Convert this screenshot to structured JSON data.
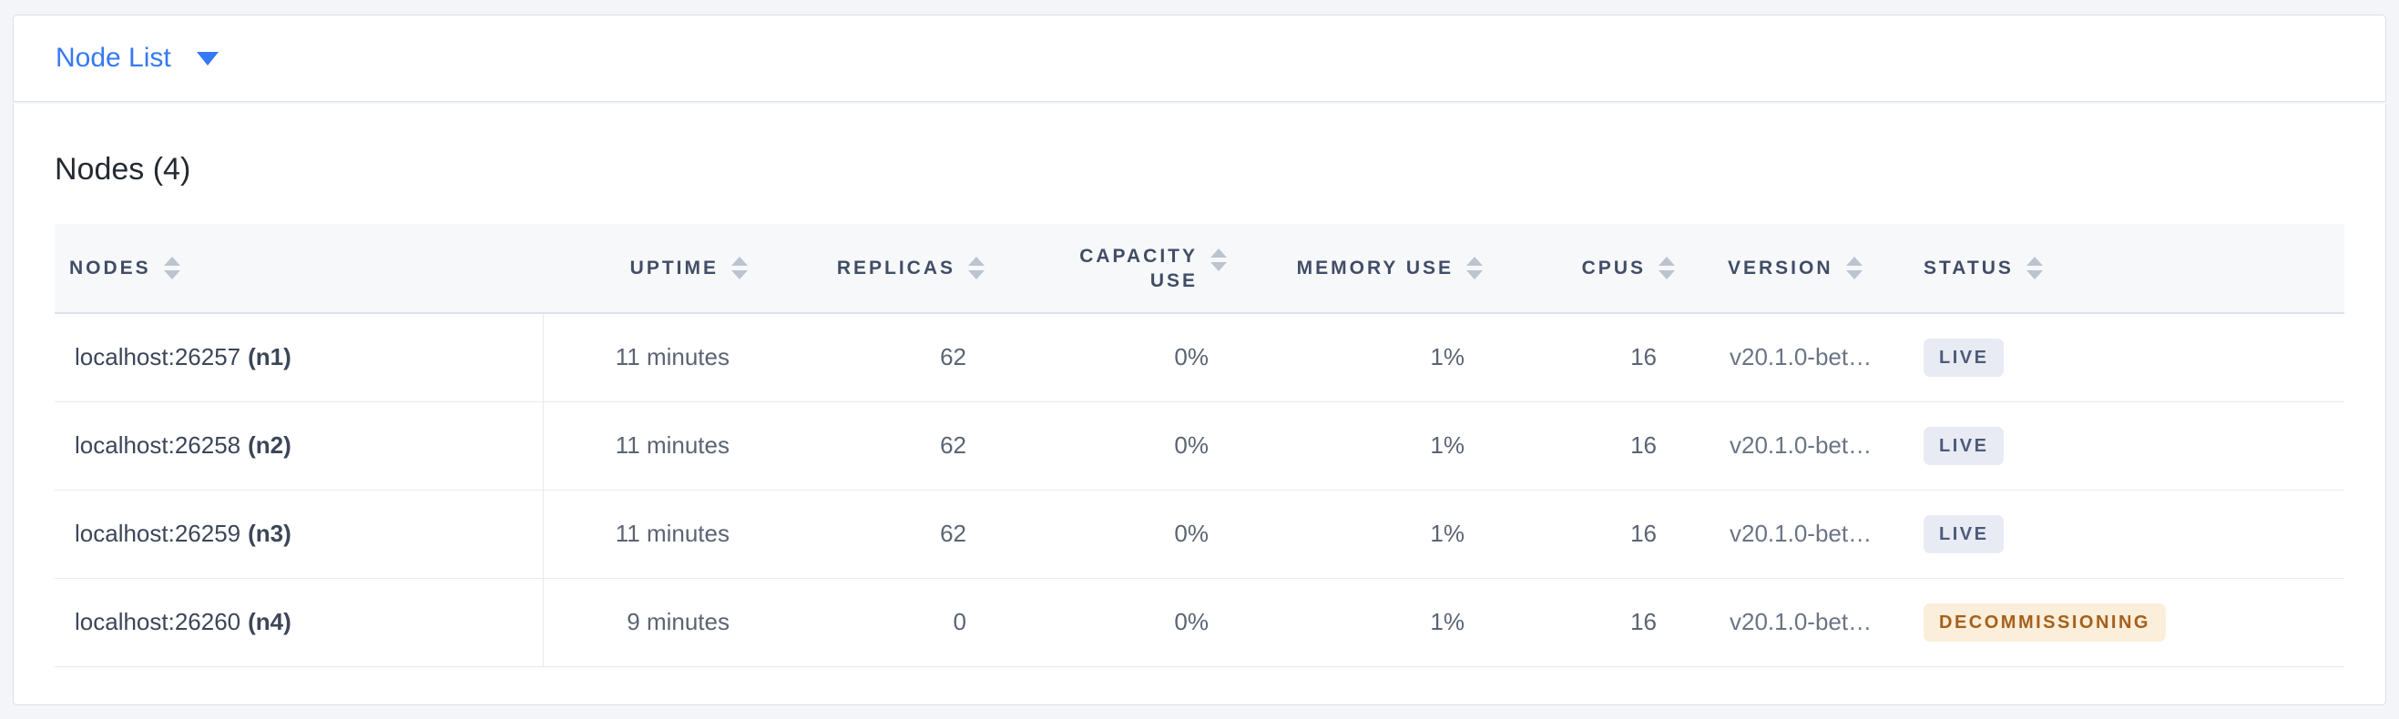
{
  "toolbar": {
    "selector_label": "Node List"
  },
  "main": {
    "title": "Nodes (4)",
    "table": {
      "columns": [
        {
          "key": "nodes",
          "label": "NODES",
          "align": "left",
          "sortable": true
        },
        {
          "key": "uptime",
          "label": "UPTIME",
          "align": "right",
          "sortable": true
        },
        {
          "key": "replicas",
          "label": "REPLICAS",
          "align": "right",
          "sortable": true
        },
        {
          "key": "capacity_use",
          "label": "CAPACITY USE",
          "align": "right",
          "sortable": true
        },
        {
          "key": "memory_use",
          "label": "MEMORY USE",
          "align": "right",
          "sortable": true
        },
        {
          "key": "cpus",
          "label": "CPUS",
          "align": "right",
          "sortable": true
        },
        {
          "key": "version",
          "label": "VERSION",
          "align": "left",
          "sortable": true
        },
        {
          "key": "status",
          "label": "STATUS",
          "align": "left",
          "sortable": true
        }
      ],
      "rows": [
        {
          "address": "localhost:26257",
          "name": "(n1)",
          "uptime": "11 minutes",
          "replicas": "62",
          "capacity_use": "0%",
          "memory_use": "1%",
          "cpus": "16",
          "version": "v20.1.0-bet…",
          "status": "LIVE"
        },
        {
          "address": "localhost:26258",
          "name": "(n2)",
          "uptime": "11 minutes",
          "replicas": "62",
          "capacity_use": "0%",
          "memory_use": "1%",
          "cpus": "16",
          "version": "v20.1.0-bet…",
          "status": "LIVE"
        },
        {
          "address": "localhost:26259",
          "name": "(n3)",
          "uptime": "11 minutes",
          "replicas": "62",
          "capacity_use": "0%",
          "memory_use": "1%",
          "cpus": "16",
          "version": "v20.1.0-bet…",
          "status": "LIVE"
        },
        {
          "address": "localhost:26260",
          "name": "(n4)",
          "uptime": "9 minutes",
          "replicas": "0",
          "capacity_use": "0%",
          "memory_use": "1%",
          "cpus": "16",
          "version": "v20.1.0-bet…",
          "status": "DECOMMISSIONING"
        }
      ]
    }
  },
  "colors": {
    "accent_blue": "#3579f4",
    "page_background": "#f3f5f9",
    "header_band": "#f7f8fa",
    "header_text": "#414d66",
    "live_badge_bg": "#e8ebf4",
    "live_badge_text": "#4c5b77",
    "decommissioning_badge_bg": "#fbeeda",
    "decommissioning_badge_text": "#a5601a"
  }
}
